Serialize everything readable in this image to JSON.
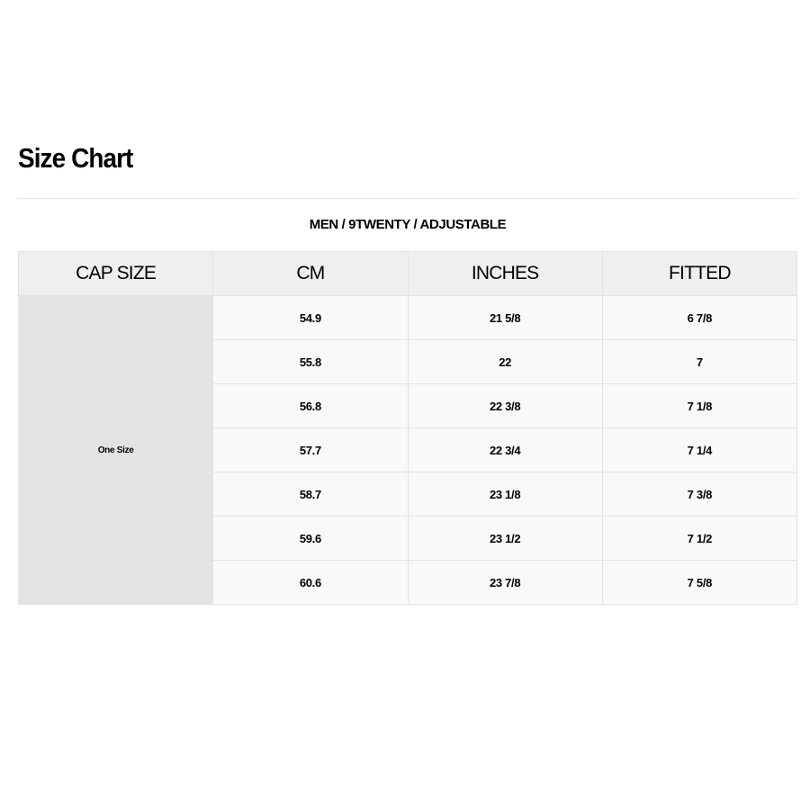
{
  "title": "Size Chart",
  "subtitle": "MEN / 9TWENTY / ADJUSTABLE",
  "headers": [
    "CAP SIZE",
    "CM",
    "INCHES",
    "FITTED"
  ],
  "cap_size": "One Size",
  "rows": [
    {
      "cm": "54.9",
      "inches": "21 5/8",
      "fitted": "6 7/8"
    },
    {
      "cm": "55.8",
      "inches": "22",
      "fitted": "7"
    },
    {
      "cm": "56.8",
      "inches": "22 3/8",
      "fitted": "7 1/8"
    },
    {
      "cm": "57.7",
      "inches": "22 3/4",
      "fitted": "7 1/4"
    },
    {
      "cm": "58.7",
      "inches": "23 1/8",
      "fitted": "7 3/8"
    },
    {
      "cm": "59.6",
      "inches": "23 1/2",
      "fitted": "7 1/2"
    },
    {
      "cm": "60.6",
      "inches": "23 7/8",
      "fitted": "7 5/8"
    }
  ]
}
